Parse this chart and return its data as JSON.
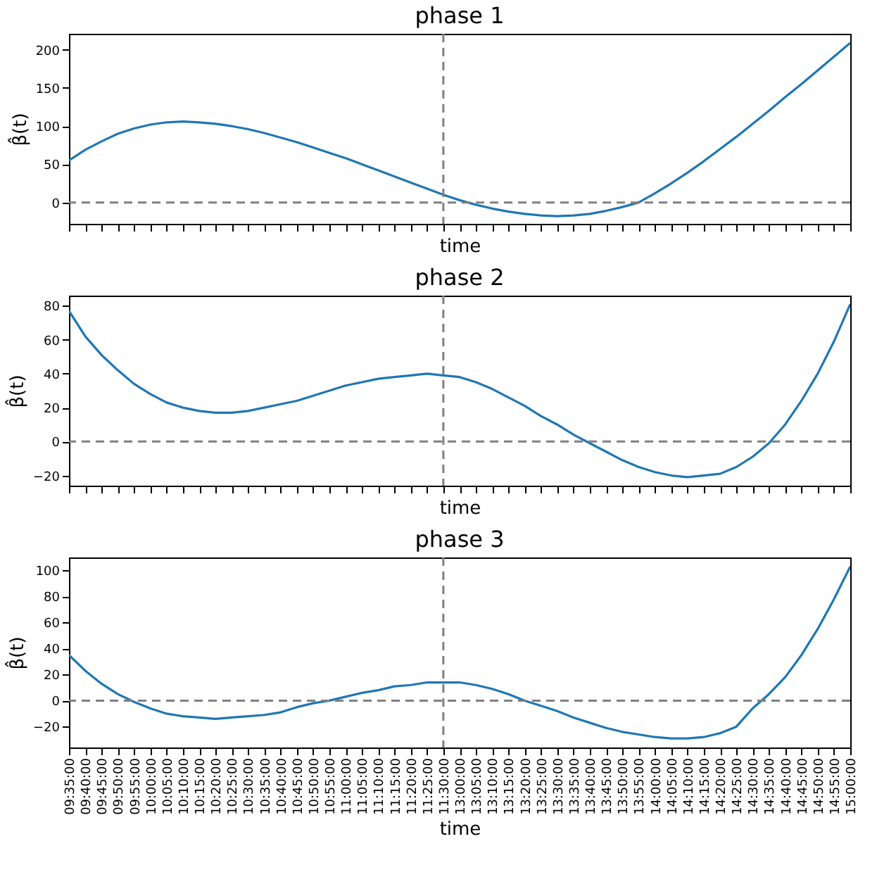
{
  "chart_data": [
    {
      "type": "line",
      "title": "phase 1",
      "xlabel": "time",
      "ylabel": "β̂(t)",
      "tick_labels": "y",
      "categories": [
        "09:35:00",
        "09:40:00",
        "09:45:00",
        "09:50:00",
        "09:55:00",
        "10:00:00",
        "10:05:00",
        "10:10:00",
        "10:15:00",
        "10:20:00",
        "10:25:00",
        "10:30:00",
        "10:35:00",
        "10:40:00",
        "10:45:00",
        "10:50:00",
        "10:55:00",
        "11:00:00",
        "11:05:00",
        "11:10:00",
        "11:15:00",
        "11:20:00",
        "11:25:00",
        "11:30:00",
        "13:00:00",
        "13:05:00",
        "13:10:00",
        "13:15:00",
        "13:20:00",
        "13:25:00",
        "13:30:00",
        "13:35:00",
        "13:40:00",
        "13:45:00",
        "13:50:00",
        "13:55:00",
        "14:00:00",
        "14:05:00",
        "14:10:00",
        "14:15:00",
        "14:20:00",
        "14:25:00",
        "14:30:00",
        "14:35:00",
        "14:40:00",
        "14:45:00",
        "14:50:00",
        "14:55:00",
        "15:00:00"
      ],
      "series": [
        {
          "color": "#1f77b4",
          "values": [
            55,
            69,
            80,
            90,
            97,
            102,
            105,
            106,
            105,
            103,
            100,
            96,
            91,
            85,
            79,
            72,
            65,
            58,
            50,
            42,
            34,
            26,
            18,
            10,
            3,
            -3,
            -8,
            -12,
            -15,
            -17,
            -18,
            -17,
            -15,
            -11,
            -6,
            0,
            12,
            25,
            39,
            54,
            70,
            86,
            103,
            120,
            138,
            155,
            173,
            191,
            209
          ]
        }
      ],
      "ylim": [
        -28,
        221
      ],
      "yticks": [
        0,
        50,
        100,
        150,
        200
      ],
      "ref_lines": [
        {
          "axis": "y",
          "value": 0,
          "color": "#808080",
          "line_style": "dashed"
        },
        {
          "axis": "x",
          "value": "11:30:00",
          "color": "#808080",
          "line_style": "dashed"
        }
      ]
    },
    {
      "type": "line",
      "title": "phase 2",
      "xlabel": "time",
      "ylabel": "β̂(t)",
      "tick_labels": "y",
      "categories": [
        "09:35:00",
        "09:40:00",
        "09:45:00",
        "09:50:00",
        "09:55:00",
        "10:00:00",
        "10:05:00",
        "10:10:00",
        "10:15:00",
        "10:20:00",
        "10:25:00",
        "10:30:00",
        "10:35:00",
        "10:40:00",
        "10:45:00",
        "10:50:00",
        "10:55:00",
        "11:00:00",
        "11:05:00",
        "11:10:00",
        "11:15:00",
        "11:20:00",
        "11:25:00",
        "11:30:00",
        "13:00:00",
        "13:05:00",
        "13:10:00",
        "13:15:00",
        "13:20:00",
        "13:25:00",
        "13:30:00",
        "13:35:00",
        "13:40:00",
        "13:45:00",
        "13:50:00",
        "13:55:00",
        "14:00:00",
        "14:05:00",
        "14:10:00",
        "14:15:00",
        "14:20:00",
        "14:25:00",
        "14:30:00",
        "14:35:00",
        "14:40:00",
        "14:45:00",
        "14:50:00",
        "14:55:00",
        "15:00:00"
      ],
      "series": [
        {
          "color": "#1f77b4",
          "values": [
            77,
            62,
            51,
            42,
            34,
            28,
            23,
            20,
            18,
            17,
            17,
            18,
            20,
            22,
            24,
            27,
            30,
            33,
            35,
            37,
            38,
            39,
            40,
            39,
            38,
            35,
            31,
            26,
            21,
            15,
            10,
            4,
            -1,
            -6,
            -11,
            -15,
            -18,
            -20,
            -21,
            -20,
            -19,
            -15,
            -9,
            -1,
            10,
            24,
            40,
            59,
            81
          ]
        }
      ],
      "ylim": [
        -26,
        86
      ],
      "yticks": [
        -20,
        0,
        20,
        40,
        60,
        80
      ],
      "ref_lines": [
        {
          "axis": "y",
          "value": 0,
          "color": "#808080",
          "line_style": "dashed"
        },
        {
          "axis": "x",
          "value": "11:30:00",
          "color": "#808080",
          "line_style": "dashed"
        }
      ]
    },
    {
      "type": "line",
      "title": "phase 3",
      "xlabel": "time",
      "ylabel": "β̂(t)",
      "categories": [
        "09:35:00",
        "09:40:00",
        "09:45:00",
        "09:50:00",
        "09:55:00",
        "10:00:00",
        "10:05:00",
        "10:10:00",
        "10:15:00",
        "10:20:00",
        "10:25:00",
        "10:30:00",
        "10:35:00",
        "10:40:00",
        "10:45:00",
        "10:50:00",
        "10:55:00",
        "11:00:00",
        "11:05:00",
        "11:10:00",
        "11:15:00",
        "11:20:00",
        "11:25:00",
        "11:30:00",
        "13:00:00",
        "13:05:00",
        "13:10:00",
        "13:15:00",
        "13:20:00",
        "13:25:00",
        "13:30:00",
        "13:35:00",
        "13:40:00",
        "13:45:00",
        "13:50:00",
        "13:55:00",
        "14:00:00",
        "14:05:00",
        "14:10:00",
        "14:15:00",
        "14:20:00",
        "14:25:00",
        "14:30:00",
        "14:35:00",
        "14:40:00",
        "14:45:00",
        "14:50:00",
        "14:55:00",
        "15:00:00"
      ],
      "series": [
        {
          "color": "#1f77b4",
          "values": [
            35,
            23,
            13,
            5,
            -1,
            -6,
            -10,
            -12,
            -13,
            -14,
            -13,
            -12,
            -11,
            -9,
            -5,
            -2,
            0,
            3,
            6,
            8,
            11,
            12,
            14,
            14,
            14,
            12,
            9,
            5,
            0,
            -4,
            -8,
            -13,
            -17,
            -21,
            -24,
            -26,
            -28,
            -29,
            -29,
            -28,
            -25,
            -20,
            -6,
            5,
            18,
            35,
            55,
            78,
            103
          ]
        }
      ],
      "ylim": [
        -36,
        110
      ],
      "yticks": [
        -20,
        0,
        20,
        40,
        60,
        80,
        100
      ],
      "ref_lines": [
        {
          "axis": "y",
          "value": 0,
          "color": "#808080",
          "line_style": "dashed"
        },
        {
          "axis": "x",
          "value": "11:30:00",
          "color": "#808080",
          "line_style": "dashed"
        }
      ]
    }
  ]
}
